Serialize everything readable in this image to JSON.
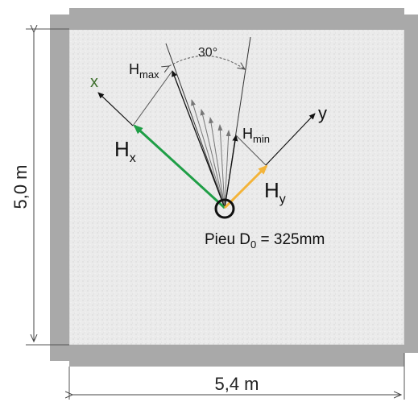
{
  "labels": {
    "x_axis": "x",
    "y_axis": "y",
    "hmax_main": "H",
    "hmax_sub": "max",
    "hmin_main": "H",
    "hmin_sub": "min",
    "hx_main": "H",
    "hx_sub": "x",
    "hy_main": "H",
    "hy_sub": "y",
    "angle": "30°",
    "pile_pre": "Pieu D",
    "pile_sub": "0",
    "pile_post": " = 325mm",
    "height_dim": "5,0 m",
    "width_dim": "5,4 m"
  },
  "colors": {
    "slab": "#e9e9e9",
    "beam": "#a9a9a9",
    "hx_arrow": "#1f9e46",
    "hy_arrow": "#f3b43a",
    "x_label": "#3c6e2a",
    "ink": "#111111"
  }
}
